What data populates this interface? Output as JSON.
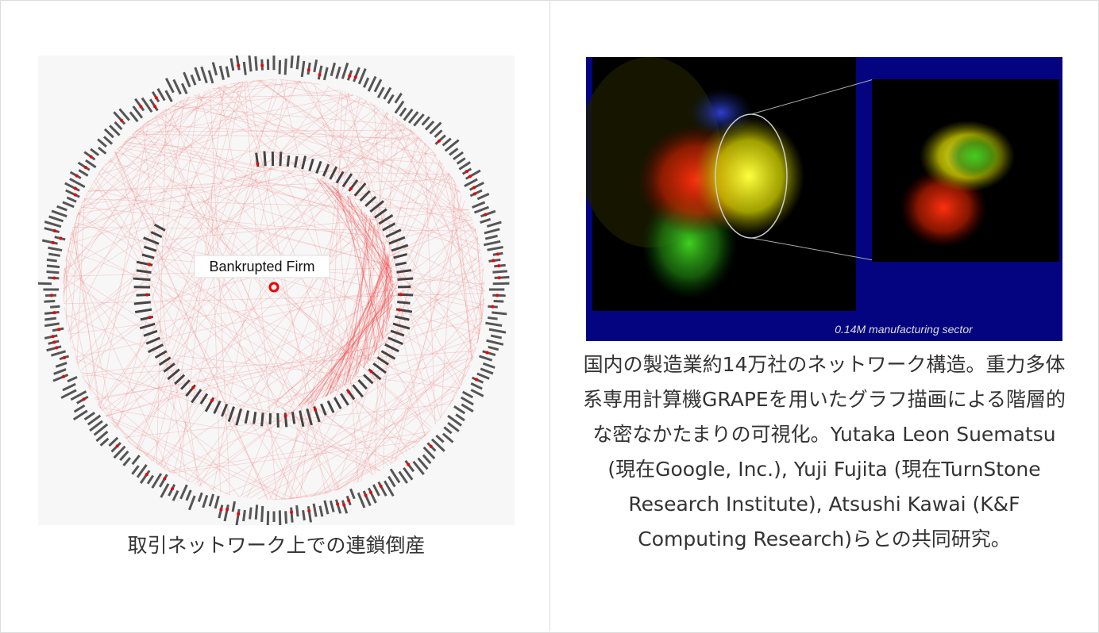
{
  "left": {
    "image_label": "Bankrupted Firm",
    "caption": "取引ネットワーク上での連鎖倒産"
  },
  "right": {
    "image_label": "0.14M manufacturing sector",
    "caption": "国内の製造業約14万社のネットワーク構造。重力多体系専用計算機GRAPEを用いたグラフ描画による階層的な密なかたまりの可視化。Yutaka Leon Suematsu (現在Google, Inc.), Yuji Fujita (現在TurnStone Research Institute), Atsushi Kawai (K&F Computing Research)らとの共同研究。"
  }
}
